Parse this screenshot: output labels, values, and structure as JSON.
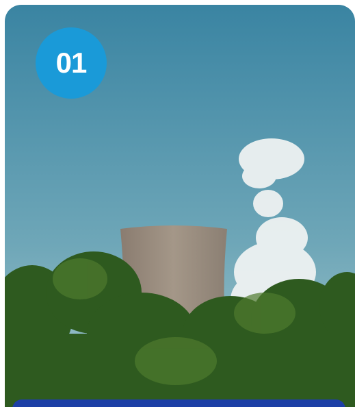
{
  "badge": {
    "label": "01"
  }
}
